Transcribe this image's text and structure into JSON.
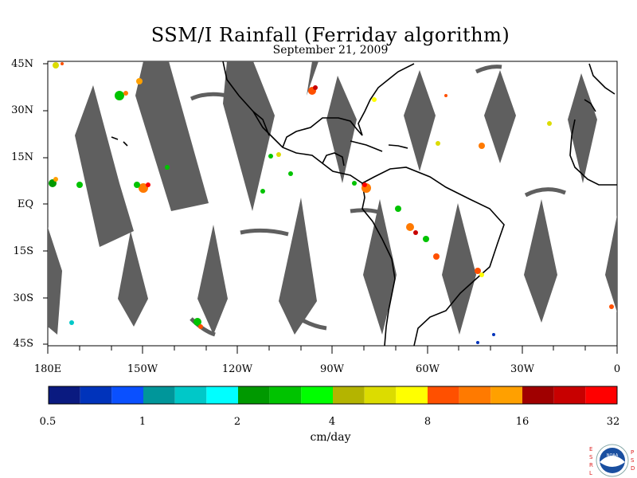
{
  "title": "SSM/I Rainfall (Ferriday algorithm)",
  "subtitle": "September 21, 2009",
  "lat_labels": [
    "45N",
    "30N",
    "15N",
    "EQ",
    "15S",
    "30S",
    "45S"
  ],
  "lon_labels": [
    "180E",
    "150W",
    "120W",
    "90W",
    "60W",
    "30W",
    "0"
  ],
  "colorbar": {
    "unit": "cm/day",
    "tick_labels": [
      "0.5",
      "1",
      "2",
      "4",
      "8",
      "16",
      "32"
    ],
    "colors": [
      "#0a1a80",
      "#0033bb",
      "#0a50ff",
      "#00969a",
      "#00c8c8",
      "#00ffff",
      "#009900",
      "#00c300",
      "#00ff00",
      "#b4b400",
      "#dcdc00",
      "#ffff00",
      "#ff5000",
      "#ff7a00",
      "#ffa000",
      "#a00000",
      "#c80000",
      "#ff0000"
    ]
  },
  "logo": {
    "left_letters": [
      "E",
      "S",
      "R",
      "L"
    ],
    "right_letters": [
      "P",
      "S",
      "D"
    ],
    "emblem_text": "NOAA"
  },
  "map_style": {
    "swath_gap_color": "#5f5f5f",
    "coast_color": "#000000",
    "background": "#ffffff"
  }
}
